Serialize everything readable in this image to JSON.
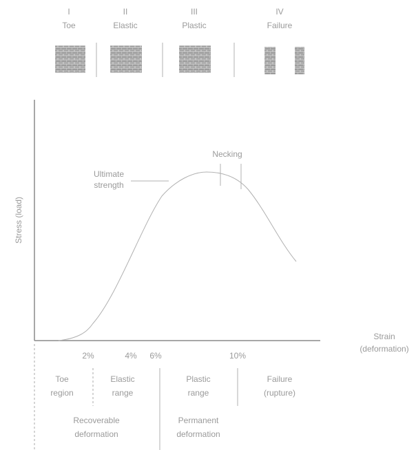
{
  "phases": [
    {
      "numeral": "I",
      "label": "Toe"
    },
    {
      "numeral": "II",
      "label": "Elastic"
    },
    {
      "numeral": "III",
      "label": "Plastic"
    },
    {
      "numeral": "IV",
      "label": "Failure"
    }
  ],
  "axes": {
    "y_label": "Stress (load)",
    "x_label": [
      "Strain",
      "(deformation)"
    ],
    "ticks": [
      "2%",
      "4%",
      "6%",
      "10%"
    ]
  },
  "annotations": {
    "ultimate": [
      "Ultimate",
      "strength"
    ],
    "necking": "Necking"
  },
  "regions": [
    [
      "Toe",
      "region"
    ],
    [
      "Elastic",
      "range"
    ],
    [
      "Plastic",
      "range"
    ],
    [
      "Failure",
      "(rupture)"
    ]
  ],
  "deformation": [
    [
      "Recoverable",
      "deformation"
    ],
    [
      "Permanent",
      "deformation"
    ]
  ]
}
